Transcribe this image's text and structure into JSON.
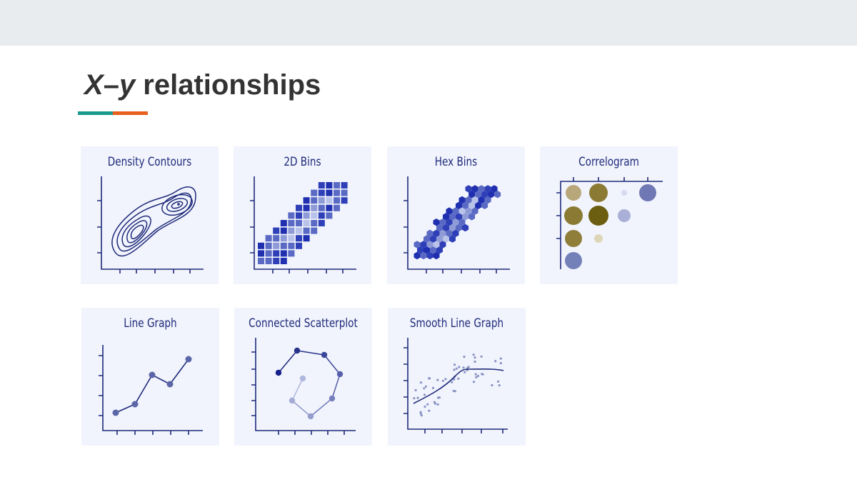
{
  "title": {
    "var_x": "X",
    "dash": "–",
    "var_y": "y",
    "rest": " relationships"
  },
  "colors": {
    "teal": "#1a9a8a",
    "orange": "#e8601c",
    "navy": "#1f2a7a",
    "tile_bg": "#f1f4fc"
  },
  "tiles": [
    {
      "label": "Density Contours"
    },
    {
      "label": "2D Bins"
    },
    {
      "label": "Hex Bins"
    },
    {
      "label": "Correlogram"
    },
    {
      "label": "Line Graph"
    },
    {
      "label": "Connected Scatterplot"
    },
    {
      "label": "Smooth Line Graph"
    }
  ]
}
